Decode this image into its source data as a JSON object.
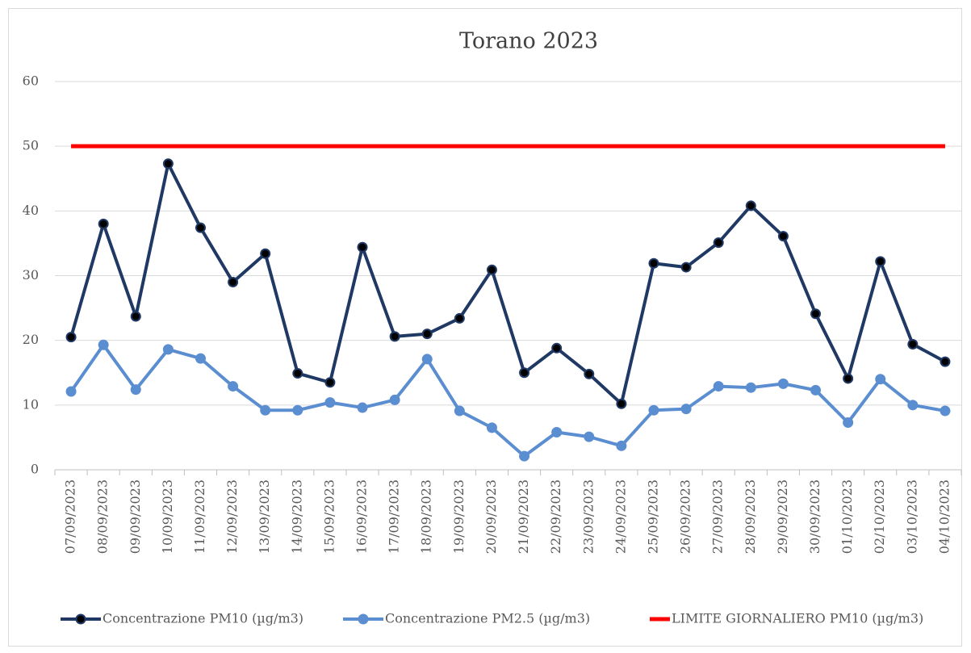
{
  "chart_data": {
    "type": "line",
    "title": "Torano 2023",
    "categories": [
      "07/09/2023",
      "08/09/2023",
      "09/09/2023",
      "10/09/2023",
      "11/09/2023",
      "12/09/2023",
      "13/09/2023",
      "14/09/2023",
      "15/09/2023",
      "16/09/2023",
      "17/09/2023",
      "18/09/2023",
      "19/09/2023",
      "20/09/2023",
      "21/09/2023",
      "22/09/2023",
      "23/09/2023",
      "24/09/2023",
      "25/09/2023",
      "26/09/2023",
      "27/09/2023",
      "28/09/2023",
      "29/09/2023",
      "30/09/2023",
      "01/10/2023",
      "02/10/2023",
      "03/10/2023",
      "04/10/2023"
    ],
    "series": [
      {
        "name": "Concentrazione PM10 (µg/m3)",
        "color": "#1f3864",
        "marker": true,
        "values": [
          20.5,
          38,
          23.7,
          47.3,
          37.4,
          29,
          33.4,
          14.9,
          13.5,
          34.4,
          20.6,
          21,
          23.4,
          30.9,
          15,
          18.8,
          14.8,
          10.2,
          31.9,
          31.3,
          35.1,
          40.8,
          36.1,
          24.1,
          14.1,
          32.2,
          19.4,
          16.7
        ]
      },
      {
        "name": "Concentrazione PM2.5 (µg/m3)",
        "color": "#5b8ed0",
        "marker": true,
        "values": [
          12.1,
          19.3,
          12.4,
          18.6,
          17.2,
          12.9,
          9.2,
          9.2,
          10.4,
          9.6,
          10.8,
          17.1,
          9.1,
          6.5,
          2.1,
          5.8,
          5.1,
          3.7,
          9.2,
          9.4,
          12.9,
          12.7,
          13.3,
          12.3,
          7.3,
          14,
          10,
          9.1
        ]
      },
      {
        "name": "LIMITE GIORNALIERO PM10 (µg/m3)",
        "color": "#ff0000",
        "marker": false,
        "values": [
          50,
          50,
          50,
          50,
          50,
          50,
          50,
          50,
          50,
          50,
          50,
          50,
          50,
          50,
          50,
          50,
          50,
          50,
          50,
          50,
          50,
          50,
          50,
          50,
          50,
          50,
          50,
          50
        ]
      }
    ],
    "ylim": [
      0,
      60
    ],
    "yticks": [
      0,
      10,
      20,
      30,
      40,
      50,
      60
    ],
    "grid": true,
    "legend": "bottom"
  }
}
